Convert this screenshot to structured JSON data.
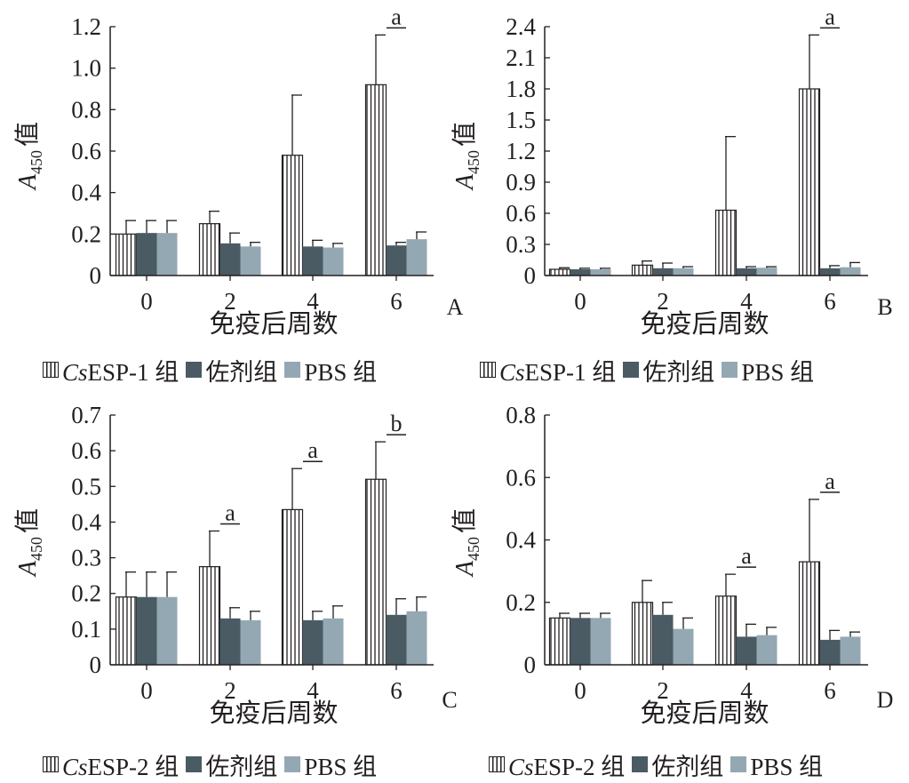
{
  "colors": {
    "group1": "#ffffff",
    "adjuvant": "#4a5b63",
    "pbs": "#94a8b3",
    "axis": "#231f20"
  },
  "chart_data": [
    {
      "panel": "A",
      "type": "bar",
      "categories": [
        "0",
        "2",
        "4",
        "6"
      ],
      "xlabel": "免疫后周数",
      "ylabel_main": "A",
      "ylabel_sub": "450",
      "ylabel_suffix": "值",
      "ylim": [
        0,
        1.2
      ],
      "yticks": [
        "0",
        "0.2",
        "0.4",
        "0.6",
        "0.8",
        "1.0",
        "1.2"
      ],
      "series": [
        {
          "name": "CsESP-1 组",
          "values": [
            0.2,
            0.25,
            0.58,
            0.92
          ],
          "errors": [
            0.065,
            0.06,
            0.29,
            0.24
          ]
        },
        {
          "name": "佐剂组",
          "values": [
            0.205,
            0.155,
            0.14,
            0.145
          ],
          "errors": [
            0.06,
            0.05,
            0.03,
            0.015
          ]
        },
        {
          "name": "PBS 组",
          "values": [
            0.205,
            0.14,
            0.135,
            0.175
          ],
          "errors": [
            0.06,
            0.02,
            0.02,
            0.035
          ]
        }
      ],
      "annotations": [
        {
          "category": "6",
          "text": "a"
        }
      ],
      "legend": {
        "name1_italic": "Cs",
        "name1_rest": "ESP-1 组",
        "name2": "佐剂组",
        "name3": "PBS 组"
      }
    },
    {
      "panel": "B",
      "type": "bar",
      "categories": [
        "0",
        "2",
        "4",
        "6"
      ],
      "xlabel": "免疫后周数",
      "ylabel_main": "A",
      "ylabel_sub": "450",
      "ylabel_suffix": "值",
      "ylim": [
        0,
        2.4
      ],
      "yticks": [
        "0",
        "0.3",
        "0.6",
        "0.9",
        "1.2",
        "1.5",
        "1.8",
        "2.1",
        "2.4"
      ],
      "series": [
        {
          "name": "CsESP-1 组",
          "values": [
            0.06,
            0.1,
            0.63,
            1.8
          ],
          "errors": [
            0.015,
            0.04,
            0.71,
            0.52
          ]
        },
        {
          "name": "佐剂组",
          "values": [
            0.06,
            0.07,
            0.07,
            0.07
          ],
          "errors": [
            0.01,
            0.05,
            0.015,
            0.025
          ]
        },
        {
          "name": "PBS 组",
          "values": [
            0.06,
            0.07,
            0.075,
            0.08
          ],
          "errors": [
            0.01,
            0.015,
            0.01,
            0.045
          ]
        }
      ],
      "annotations": [
        {
          "category": "6",
          "text": "a"
        }
      ],
      "legend": {
        "name1_italic": "Cs",
        "name1_rest": "ESP-1 组",
        "name2": "佐剂组",
        "name3": "PBS 组"
      }
    },
    {
      "panel": "C",
      "type": "bar",
      "categories": [
        "0",
        "2",
        "4",
        "6"
      ],
      "xlabel": "免疫后周数",
      "ylabel_main": "A",
      "ylabel_sub": "450",
      "ylabel_suffix": "值",
      "ylim": [
        0,
        0.7
      ],
      "yticks": [
        "0",
        "0.1",
        "0.2",
        "0.3",
        "0.4",
        "0.5",
        "0.6",
        "0.7"
      ],
      "series": [
        {
          "name": "CsESP-2 组",
          "values": [
            0.19,
            0.275,
            0.435,
            0.52
          ],
          "errors": [
            0.07,
            0.1,
            0.115,
            0.105
          ]
        },
        {
          "name": "佐剂组",
          "values": [
            0.19,
            0.13,
            0.125,
            0.14
          ],
          "errors": [
            0.07,
            0.03,
            0.025,
            0.045
          ]
        },
        {
          "name": "PBS 组",
          "values": [
            0.19,
            0.125,
            0.13,
            0.15
          ],
          "errors": [
            0.07,
            0.025,
            0.035,
            0.04
          ]
        }
      ],
      "annotations": [
        {
          "category": "2",
          "text": "a"
        },
        {
          "category": "4",
          "text": "a"
        },
        {
          "category": "6",
          "text": "b"
        }
      ],
      "legend": {
        "name1_italic": "Cs",
        "name1_rest": "ESP-2 组",
        "name2": "佐剂组",
        "name3": "PBS 组"
      }
    },
    {
      "panel": "D",
      "type": "bar",
      "categories": [
        "0",
        "2",
        "4",
        "6"
      ],
      "xlabel": "免疫后周数",
      "ylabel_main": "A",
      "ylabel_sub": "450",
      "ylabel_suffix": "值",
      "ylim": [
        0,
        0.8
      ],
      "yticks": [
        "0",
        "0.2",
        "0.4",
        "0.6",
        "0.8"
      ],
      "series": [
        {
          "name": "CsESP-2 组",
          "values": [
            0.15,
            0.2,
            0.22,
            0.33
          ],
          "errors": [
            0.015,
            0.07,
            0.07,
            0.2
          ]
        },
        {
          "name": "佐剂组",
          "values": [
            0.15,
            0.16,
            0.09,
            0.08
          ],
          "errors": [
            0.015,
            0.04,
            0.04,
            0.03
          ]
        },
        {
          "name": "PBS 组",
          "values": [
            0.15,
            0.115,
            0.095,
            0.09
          ],
          "errors": [
            0.015,
            0.035,
            0.025,
            0.015
          ]
        }
      ],
      "annotations": [
        {
          "category": "4",
          "text": "a"
        },
        {
          "category": "6",
          "text": "a"
        }
      ],
      "legend": {
        "name1_italic": "Cs",
        "name1_rest": "ESP-2 组",
        "name2": "佐剂组",
        "name3": "PBS 组"
      }
    }
  ]
}
